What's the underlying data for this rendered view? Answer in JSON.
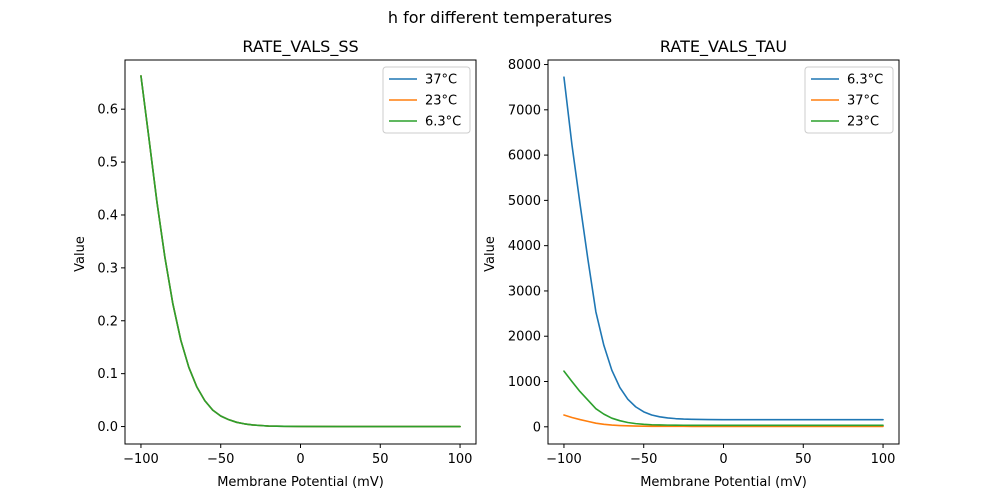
{
  "suptitle": "h for different temperatures",
  "chart_data": [
    {
      "type": "line",
      "title": "RATE_VALS_SS",
      "xlabel": "Membrane Potential (mV)",
      "ylabel": "Value",
      "xlim": [
        -110,
        110
      ],
      "ylim": [
        -0.033,
        0.693
      ],
      "xticks": [
        -100,
        -50,
        0,
        50,
        100
      ],
      "xtick_labels": [
        "−100",
        "−50",
        "0",
        "50",
        "100"
      ],
      "yticks": [
        0.0,
        0.1,
        0.2,
        0.3,
        0.4,
        0.5,
        0.6
      ],
      "ytick_labels": [
        "0.0",
        "0.1",
        "0.2",
        "0.3",
        "0.4",
        "0.5",
        "0.6"
      ],
      "legend_position": "top-right",
      "x": [
        -100,
        -95,
        -90,
        -85,
        -80,
        -75,
        -70,
        -65,
        -60,
        -55,
        -50,
        -45,
        -40,
        -35,
        -30,
        -25,
        -20,
        -10,
        0,
        25,
        50,
        75,
        100
      ],
      "series": [
        {
          "name": "37°C",
          "color": "#1f77b4",
          "values": [
            0.663,
            0.545,
            0.425,
            0.32,
            0.232,
            0.163,
            0.112,
            0.075,
            0.049,
            0.031,
            0.02,
            0.013,
            0.008,
            0.005,
            0.003,
            0.002,
            0.001,
            0.0005,
            0.0002,
            0.0,
            0.0,
            0.0,
            0.0
          ]
        },
        {
          "name": "23°C",
          "color": "#ff7f0e",
          "values": [
            0.663,
            0.545,
            0.425,
            0.32,
            0.232,
            0.163,
            0.112,
            0.075,
            0.049,
            0.031,
            0.02,
            0.013,
            0.008,
            0.005,
            0.003,
            0.002,
            0.001,
            0.0005,
            0.0002,
            0.0,
            0.0,
            0.0,
            0.0
          ]
        },
        {
          "name": "6.3°C",
          "color": "#2ca02c",
          "values": [
            0.663,
            0.545,
            0.425,
            0.32,
            0.232,
            0.163,
            0.112,
            0.075,
            0.049,
            0.031,
            0.02,
            0.013,
            0.008,
            0.005,
            0.003,
            0.002,
            0.001,
            0.0005,
            0.0002,
            0.0,
            0.0,
            0.0,
            0.0
          ]
        }
      ]
    },
    {
      "type": "line",
      "title": "RATE_VALS_TAU",
      "xlabel": "Membrane Potential (mV)",
      "ylabel": "Value",
      "xlim": [
        -110,
        110
      ],
      "ylim": [
        -380,
        8100
      ],
      "xticks": [
        -100,
        -50,
        0,
        50,
        100
      ],
      "xtick_labels": [
        "−100",
        "−50",
        "0",
        "50",
        "100"
      ],
      "yticks": [
        0,
        1000,
        2000,
        3000,
        4000,
        5000,
        6000,
        7000,
        8000
      ],
      "ytick_labels": [
        "0",
        "1000",
        "2000",
        "3000",
        "4000",
        "5000",
        "6000",
        "7000",
        "8000"
      ],
      "legend_position": "top-right",
      "x": [
        -100,
        -95,
        -90,
        -85,
        -80,
        -75,
        -70,
        -65,
        -60,
        -55,
        -50,
        -45,
        -40,
        -35,
        -30,
        -25,
        -20,
        -10,
        0,
        25,
        50,
        75,
        100
      ],
      "series": [
        {
          "name": "6.3°C",
          "color": "#1f77b4",
          "values": [
            7720,
            6230,
            4940,
            3700,
            2540,
            1800,
            1250,
            870,
            610,
            440,
            330,
            260,
            220,
            195,
            180,
            170,
            165,
            160,
            158,
            157,
            157,
            157,
            157
          ]
        },
        {
          "name": "37°C",
          "color": "#ff7f0e",
          "values": [
            260,
            205,
            160,
            120,
            80,
            55,
            38,
            28,
            21,
            16,
            13,
            11,
            10,
            9,
            9,
            9,
            8,
            8,
            8,
            8,
            8,
            8,
            8
          ]
        },
        {
          "name": "23°C",
          "color": "#2ca02c",
          "values": [
            1230,
            1000,
            780,
            590,
            400,
            280,
            190,
            135,
            95,
            70,
            55,
            45,
            40,
            37,
            35,
            34,
            33,
            33,
            33,
            33,
            33,
            33,
            33
          ]
        }
      ]
    }
  ]
}
